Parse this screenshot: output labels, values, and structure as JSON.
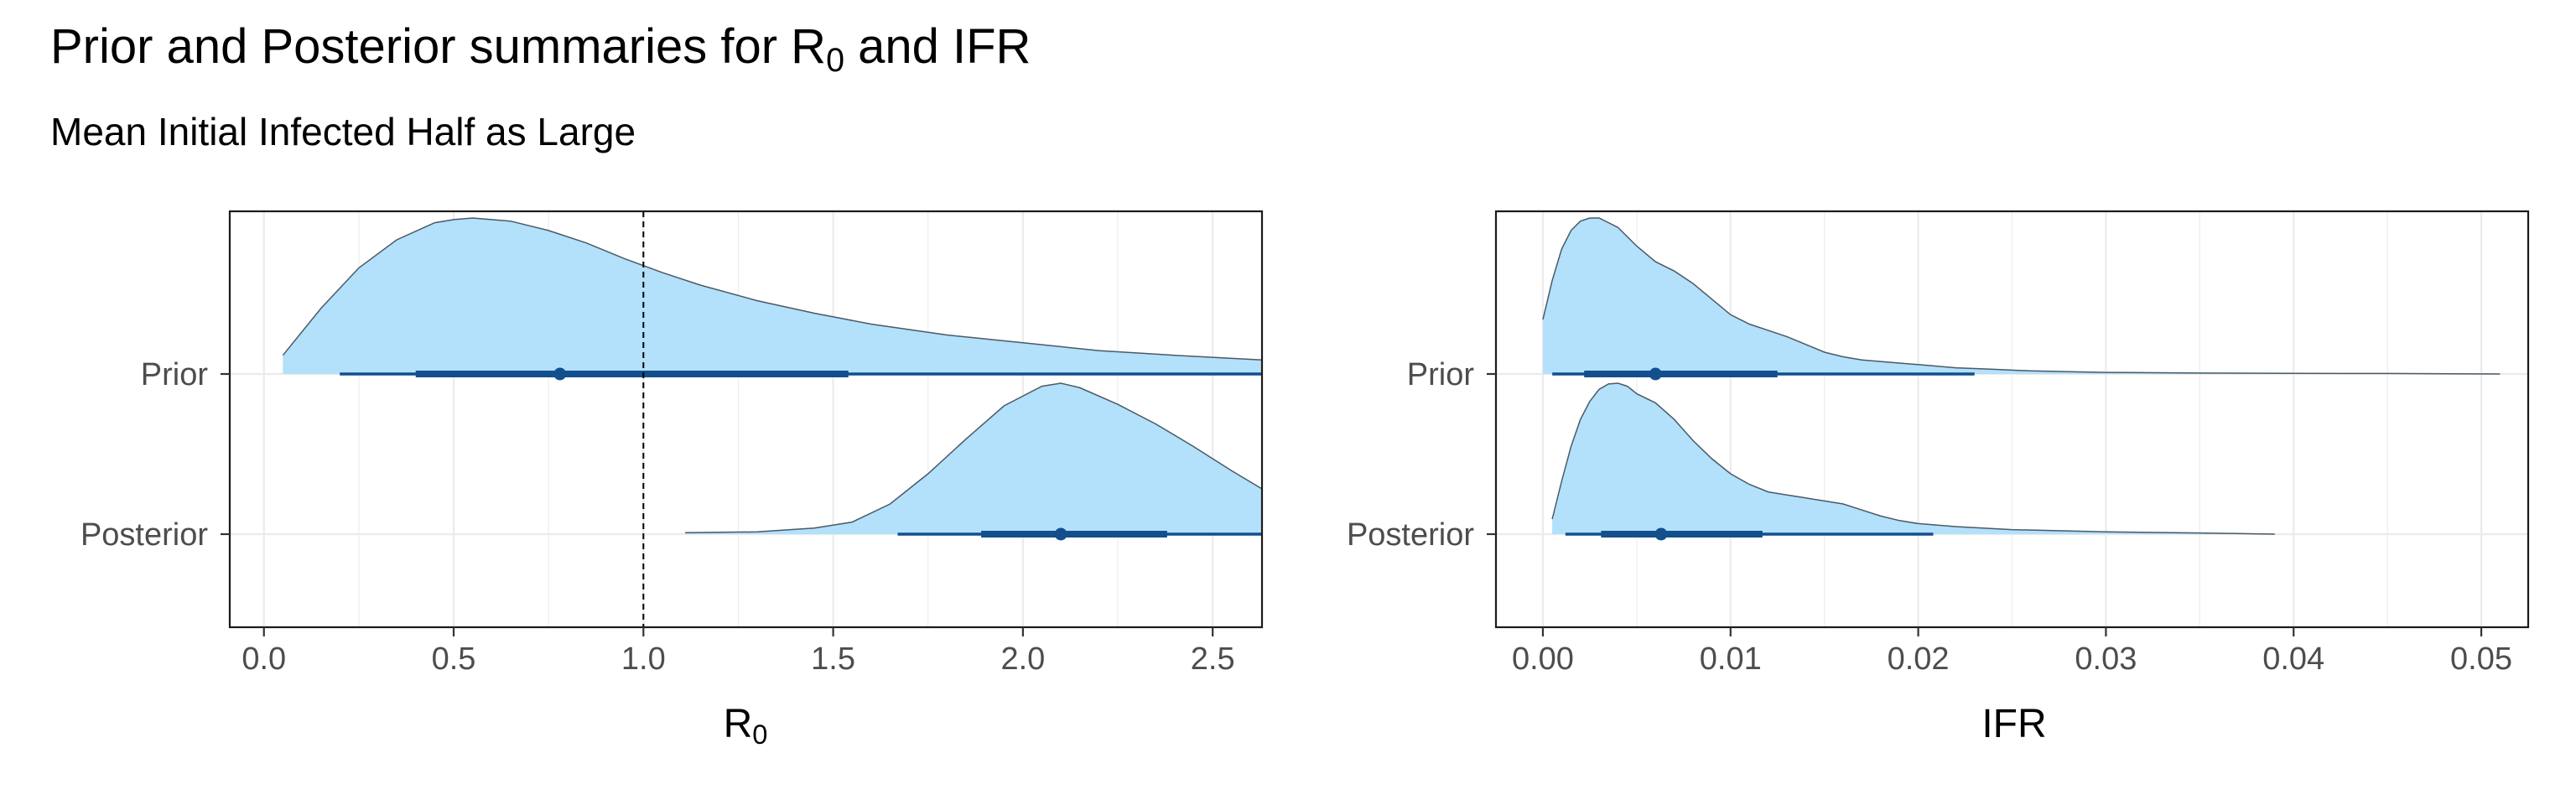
{
  "title": {
    "main": "Prior and Posterior summaries for R",
    "sub": "0",
    "tail": " and IFR"
  },
  "subtitle": "Mean Initial Infected Half as Large",
  "colors": {
    "fill": "#b3e0fb",
    "outline": "#4a5a66",
    "interval": "#124f8c",
    "grid": "#ebebeb",
    "panel_border": "#1a1a1a"
  },
  "chart_data": [
    {
      "type": "area",
      "title": "",
      "xlabel": "R",
      "xlabel_sub": "0",
      "categories": [
        "Prior",
        "Posterior"
      ],
      "xlim": [
        -0.09,
        2.63
      ],
      "x_ticks": [
        0.0,
        0.5,
        1.0,
        1.5,
        2.0,
        2.5
      ],
      "x_tick_labels": [
        "0.0",
        "0.5",
        "1.0",
        "1.5",
        "2.0",
        "2.5"
      ],
      "reference_line": 1.0,
      "grid": true,
      "series": [
        {
          "name": "Prior",
          "density": [
            [
              0.05,
              0.12
            ],
            [
              0.15,
              0.42
            ],
            [
              0.25,
              0.68
            ],
            [
              0.35,
              0.86
            ],
            [
              0.45,
              0.97
            ],
            [
              0.5,
              0.99
            ],
            [
              0.55,
              1.0
            ],
            [
              0.65,
              0.98
            ],
            [
              0.75,
              0.92
            ],
            [
              0.85,
              0.84
            ],
            [
              0.95,
              0.74
            ],
            [
              1.05,
              0.65
            ],
            [
              1.15,
              0.57
            ],
            [
              1.3,
              0.47
            ],
            [
              1.45,
              0.39
            ],
            [
              1.6,
              0.32
            ],
            [
              1.8,
              0.25
            ],
            [
              2.0,
              0.2
            ],
            [
              2.2,
              0.15
            ],
            [
              2.4,
              0.12
            ],
            [
              2.63,
              0.09
            ]
          ],
          "point": 0.78,
          "inner": [
            0.4,
            1.54
          ],
          "outer": [
            0.2,
            2.63
          ]
        },
        {
          "name": "Posterior",
          "density": [
            [
              1.11,
              0.01
            ],
            [
              1.3,
              0.015
            ],
            [
              1.45,
              0.04
            ],
            [
              1.55,
              0.08
            ],
            [
              1.65,
              0.2
            ],
            [
              1.75,
              0.4
            ],
            [
              1.85,
              0.63
            ],
            [
              1.95,
              0.85
            ],
            [
              2.05,
              0.98
            ],
            [
              2.1,
              1.0
            ],
            [
              2.15,
              0.97
            ],
            [
              2.25,
              0.86
            ],
            [
              2.35,
              0.73
            ],
            [
              2.45,
              0.58
            ],
            [
              2.55,
              0.42
            ],
            [
              2.63,
              0.3
            ]
          ],
          "point": 2.1,
          "inner": [
            1.89,
            2.38
          ],
          "outer": [
            1.67,
            2.63
          ]
        }
      ]
    },
    {
      "type": "area",
      "title": "",
      "xlabel": "IFR",
      "xlabel_sub": "",
      "categories": [
        "Prior",
        "Posterior"
      ],
      "xlim": [
        -0.0025,
        0.0525
      ],
      "x_ticks": [
        0.0,
        0.01,
        0.02,
        0.03,
        0.04,
        0.05
      ],
      "x_tick_labels": [
        "0.00",
        "0.01",
        "0.02",
        "0.03",
        "0.04",
        "0.05"
      ],
      "reference_line": null,
      "grid": true,
      "series": [
        {
          "name": "Prior",
          "density": [
            [
              0.0,
              0.35
            ],
            [
              0.0005,
              0.6
            ],
            [
              0.001,
              0.8
            ],
            [
              0.0015,
              0.92
            ],
            [
              0.002,
              0.98
            ],
            [
              0.0025,
              1.0
            ],
            [
              0.003,
              1.0
            ],
            [
              0.004,
              0.94
            ],
            [
              0.005,
              0.82
            ],
            [
              0.006,
              0.72
            ],
            [
              0.007,
              0.66
            ],
            [
              0.008,
              0.58
            ],
            [
              0.009,
              0.48
            ],
            [
              0.01,
              0.38
            ],
            [
              0.011,
              0.32
            ],
            [
              0.012,
              0.28
            ],
            [
              0.013,
              0.24
            ],
            [
              0.014,
              0.19
            ],
            [
              0.015,
              0.14
            ],
            [
              0.016,
              0.11
            ],
            [
              0.017,
              0.09
            ],
            [
              0.018,
              0.08
            ],
            [
              0.019,
              0.07
            ],
            [
              0.02,
              0.06
            ],
            [
              0.022,
              0.04
            ],
            [
              0.024,
              0.03
            ],
            [
              0.026,
              0.02
            ],
            [
              0.028,
              0.015
            ],
            [
              0.03,
              0.01
            ],
            [
              0.035,
              0.006
            ],
            [
              0.04,
              0.004
            ],
            [
              0.045,
              0.003
            ],
            [
              0.051,
              0.0
            ]
          ],
          "point": 0.006,
          "inner": [
            0.0022,
            0.0125
          ],
          "outer": [
            0.0005,
            0.023
          ]
        },
        {
          "name": "Posterior",
          "density": [
            [
              0.0005,
              0.1
            ],
            [
              0.001,
              0.35
            ],
            [
              0.0015,
              0.58
            ],
            [
              0.002,
              0.76
            ],
            [
              0.0025,
              0.88
            ],
            [
              0.003,
              0.96
            ],
            [
              0.0035,
              0.995
            ],
            [
              0.004,
              1.0
            ],
            [
              0.0045,
              0.98
            ],
            [
              0.005,
              0.93
            ],
            [
              0.006,
              0.87
            ],
            [
              0.007,
              0.76
            ],
            [
              0.008,
              0.62
            ],
            [
              0.009,
              0.5
            ],
            [
              0.01,
              0.4
            ],
            [
              0.011,
              0.33
            ],
            [
              0.012,
              0.28
            ],
            [
              0.013,
              0.26
            ],
            [
              0.014,
              0.24
            ],
            [
              0.015,
              0.22
            ],
            [
              0.016,
              0.2
            ],
            [
              0.017,
              0.16
            ],
            [
              0.018,
              0.12
            ],
            [
              0.019,
              0.09
            ],
            [
              0.02,
              0.07
            ],
            [
              0.022,
              0.05
            ],
            [
              0.025,
              0.03
            ],
            [
              0.03,
              0.015
            ],
            [
              0.035,
              0.008
            ],
            [
              0.039,
              0.0
            ]
          ],
          "point": 0.0063,
          "inner": [
            0.0031,
            0.0117
          ],
          "outer": [
            0.0012,
            0.0208
          ]
        }
      ]
    }
  ]
}
